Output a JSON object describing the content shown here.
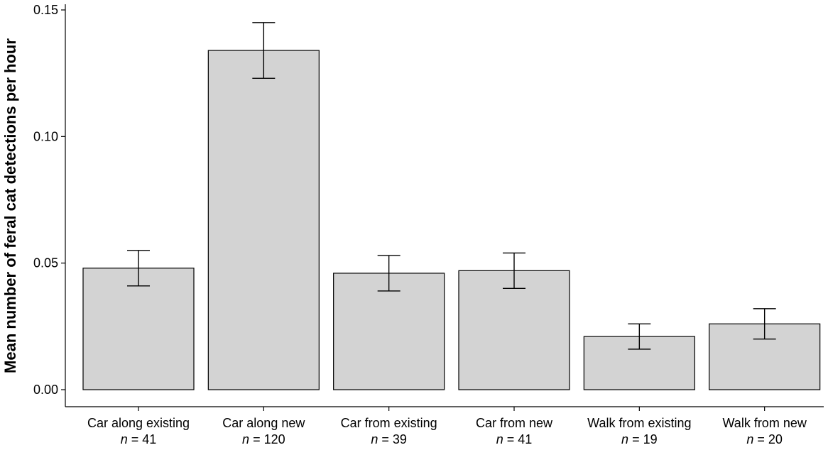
{
  "chart_data": {
    "type": "bar",
    "ylabel": "Mean number of feral cat detections per hour",
    "ylim": [
      0,
      0.15
    ],
    "yticks": [
      "0.00",
      "0.05",
      "0.10",
      "0.15"
    ],
    "ytick_values": [
      0,
      0.05,
      0.1,
      0.15
    ],
    "grid": false,
    "categories": [
      "Car along existing",
      "Car along new",
      "Car from existing",
      "Car from new",
      "Walk from existing",
      "Walk from new"
    ],
    "n_values": [
      "41",
      "120",
      "39",
      "41",
      "19",
      "20"
    ],
    "n_prefix": "n",
    "values": [
      0.048,
      0.134,
      0.046,
      0.047,
      0.021,
      0.026
    ],
    "error_low": [
      0.041,
      0.123,
      0.039,
      0.04,
      0.016,
      0.02
    ],
    "error_high": [
      0.055,
      0.145,
      0.053,
      0.054,
      0.026,
      0.032
    ],
    "colors": {
      "bar_fill": "#d3d3d3",
      "bar_stroke": "#000000"
    }
  }
}
